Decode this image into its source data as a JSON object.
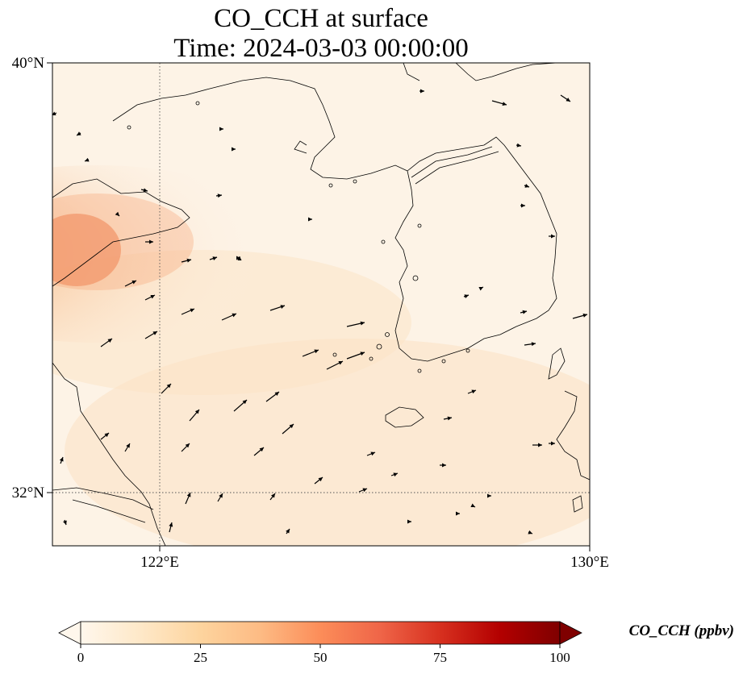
{
  "map": {
    "title_line1": "CO_CCH at surface",
    "title_line2": "Time: 2024-03-03 00:00:00",
    "lat_labels": [
      "40°N",
      "32°N"
    ],
    "lon_labels": [
      "122°E",
      "130°E"
    ],
    "gridlines": "dotted",
    "extent": {
      "lon": [
        120,
        130
      ],
      "lat": [
        31,
        40
      ]
    },
    "background_color": "#fdf3e6",
    "plume_color": "#f08c60",
    "coastline_color": "#000000",
    "wind_arrow_color": "#000000"
  },
  "colorbar": {
    "label": "CO_CCH (ppbv)",
    "ticks": [
      "0",
      "25",
      "50",
      "75",
      "100"
    ],
    "min": 0,
    "max": 100,
    "extend": "both",
    "colormap": "OrRd",
    "stops": [
      "#fff7ec",
      "#fee8c8",
      "#fdd49e",
      "#fdbb84",
      "#fc8d59",
      "#ef6548",
      "#d7301f",
      "#b30000",
      "#7f0000"
    ]
  }
}
